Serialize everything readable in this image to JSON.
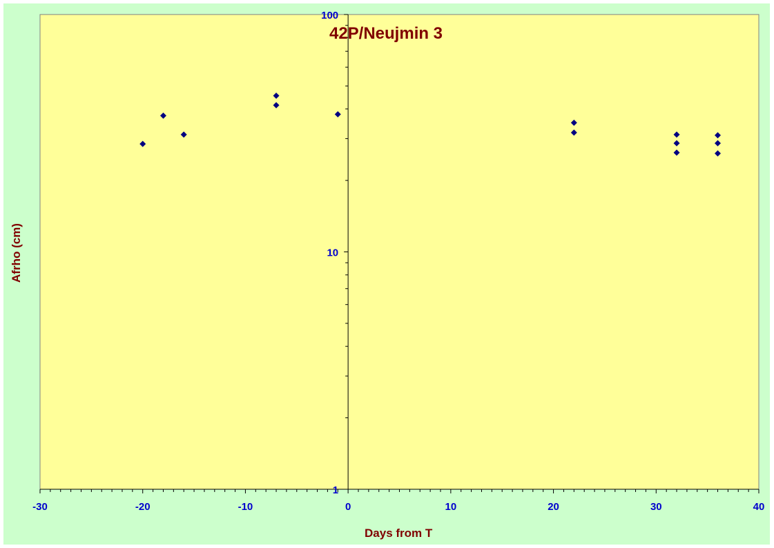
{
  "chart_data": {
    "type": "scatter",
    "title": "42P/Neujmin 3",
    "xlabel": "Days from T",
    "ylabel": "Afrho (cm)",
    "xlim": [
      -30,
      40
    ],
    "ylim": [
      1,
      100
    ],
    "yscale": "log",
    "x_ticks": [
      -30,
      -20,
      -10,
      0,
      10,
      20,
      30,
      40
    ],
    "y_ticks": [
      1,
      10,
      100
    ],
    "grid": false,
    "legend": "none",
    "series": [
      {
        "points": [
          {
            "x": -20,
            "y": 28.5
          },
          {
            "x": -18,
            "y": 37.5
          },
          {
            "x": -16,
            "y": 31.2
          },
          {
            "x": -7,
            "y": 45.5
          },
          {
            "x": -7,
            "y": 41.5
          },
          {
            "x": -1,
            "y": 38.0
          },
          {
            "x": 22,
            "y": 35.0
          },
          {
            "x": 22,
            "y": 31.8
          },
          {
            "x": 32,
            "y": 31.2
          },
          {
            "x": 32,
            "y": 28.7
          },
          {
            "x": 32,
            "y": 26.2
          },
          {
            "x": 36,
            "y": 31.0
          },
          {
            "x": 36,
            "y": 28.7
          },
          {
            "x": 36,
            "y": 26.0
          }
        ]
      }
    ]
  },
  "colors": {
    "plot_background": "#ffff99",
    "chart_background": "#ccffcc",
    "marker": "#000080",
    "tick_labels": "#0000cc",
    "titles": "#800000"
  }
}
